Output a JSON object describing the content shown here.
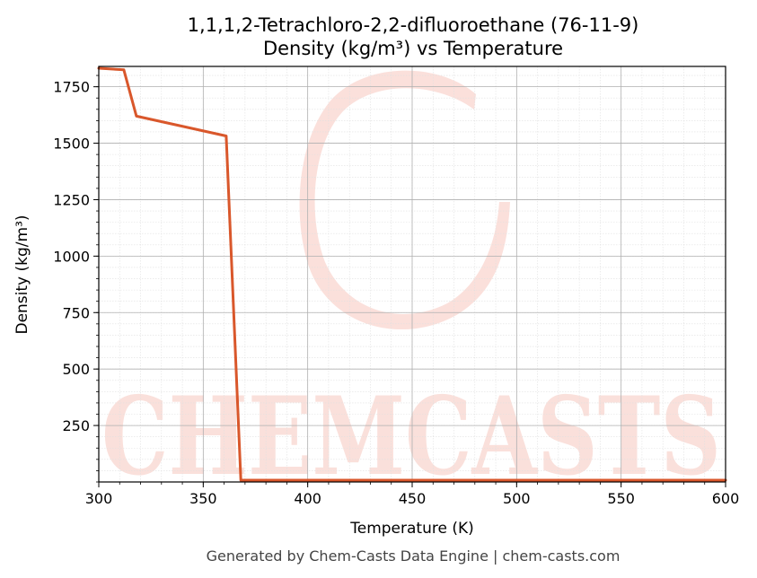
{
  "chart_data": {
    "type": "line",
    "title": "1,1,1,2-Tetrachloro-2,2-difluoroethane (76-11-9)",
    "subtitle": "Density (kg/m³) vs Temperature",
    "xlabel": "Temperature (K)",
    "ylabel": "Density (kg/m³)",
    "xlim": [
      300,
      600
    ],
    "ylim": [
      0,
      1840
    ],
    "xticks": [
      300,
      350,
      400,
      450,
      500,
      550,
      600
    ],
    "yticks": [
      250,
      500,
      750,
      1000,
      1250,
      1500,
      1750
    ],
    "grid": true,
    "series": [
      {
        "color": "#d9572b",
        "x": [
          300,
          312,
          318,
          361,
          368,
          600
        ],
        "y": [
          1832,
          1825,
          1620,
          1532,
          8,
          8
        ]
      }
    ]
  },
  "footer": "Generated by Chem-Casts Data Engine | chem-casts.com",
  "watermark": "CHEMCASTS"
}
